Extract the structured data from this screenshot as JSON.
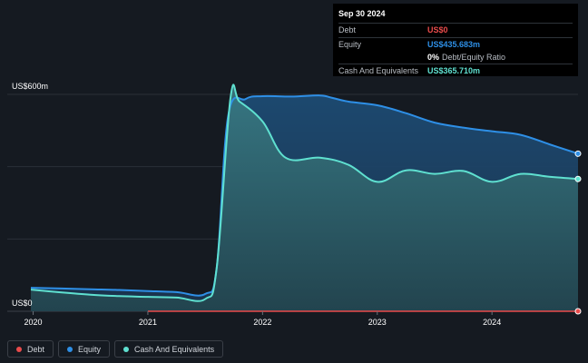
{
  "tooltip": {
    "date": "Sep 30 2024",
    "debt_label": "Debt",
    "debt_value": "US$0",
    "equity_label": "Equity",
    "equity_value": "US$435.683m",
    "ratio_value": "0%",
    "ratio_label": "Debt/Equity Ratio",
    "cash_label": "Cash And Equivalents",
    "cash_value": "US$365.710m"
  },
  "legend": [
    {
      "label": "Debt",
      "color": "#e94b4b"
    },
    {
      "label": "Equity",
      "color": "#2e8fe6"
    },
    {
      "label": "Cash And Equivalents",
      "color": "#5fe0d0"
    }
  ],
  "colors": {
    "debt": "#e94b4b",
    "equity": "#2e8fe6",
    "cash": "#5fe0d0",
    "background": "#151a21"
  },
  "chart_data": {
    "type": "area",
    "y_top_label": "US$600m",
    "y_bottom_label": "US$0",
    "ylim": [
      0,
      600
    ],
    "xlim": [
      2019.98,
      2024.75
    ],
    "x_ticks": [
      "2020",
      "2021",
      "2022",
      "2023",
      "2024"
    ],
    "series": [
      {
        "name": "Debt",
        "points": [
          [
            2021.0,
            0
          ],
          [
            2024.75,
            0
          ]
        ]
      },
      {
        "name": "Equity",
        "points": [
          [
            2019.98,
            65
          ],
          [
            2020.25,
            63
          ],
          [
            2020.5,
            61
          ],
          [
            2020.75,
            59
          ],
          [
            2021.0,
            56
          ],
          [
            2021.25,
            53
          ],
          [
            2021.5,
            48
          ],
          [
            2021.6,
            120
          ],
          [
            2021.7,
            540
          ],
          [
            2021.85,
            587
          ],
          [
            2022.0,
            595
          ],
          [
            2022.25,
            594
          ],
          [
            2022.5,
            597
          ],
          [
            2022.6,
            591
          ],
          [
            2022.75,
            580
          ],
          [
            2023.0,
            570
          ],
          [
            2023.25,
            548
          ],
          [
            2023.5,
            522
          ],
          [
            2023.75,
            508
          ],
          [
            2024.0,
            498
          ],
          [
            2024.25,
            488
          ],
          [
            2024.5,
            462
          ],
          [
            2024.75,
            436
          ]
        ]
      },
      {
        "name": "Cash And Equivalents",
        "points": [
          [
            2019.98,
            60
          ],
          [
            2020.25,
            52
          ],
          [
            2020.5,
            46
          ],
          [
            2020.75,
            42
          ],
          [
            2021.0,
            40
          ],
          [
            2021.25,
            38
          ],
          [
            2021.5,
            34
          ],
          [
            2021.6,
            120
          ],
          [
            2021.72,
            590
          ],
          [
            2021.8,
            580
          ],
          [
            2022.0,
            525
          ],
          [
            2022.2,
            425
          ],
          [
            2022.5,
            425
          ],
          [
            2022.75,
            405
          ],
          [
            2023.0,
            358
          ],
          [
            2023.25,
            390
          ],
          [
            2023.5,
            380
          ],
          [
            2023.75,
            388
          ],
          [
            2024.0,
            358
          ],
          [
            2024.25,
            380
          ],
          [
            2024.5,
            372
          ],
          [
            2024.75,
            366
          ]
        ]
      }
    ]
  }
}
